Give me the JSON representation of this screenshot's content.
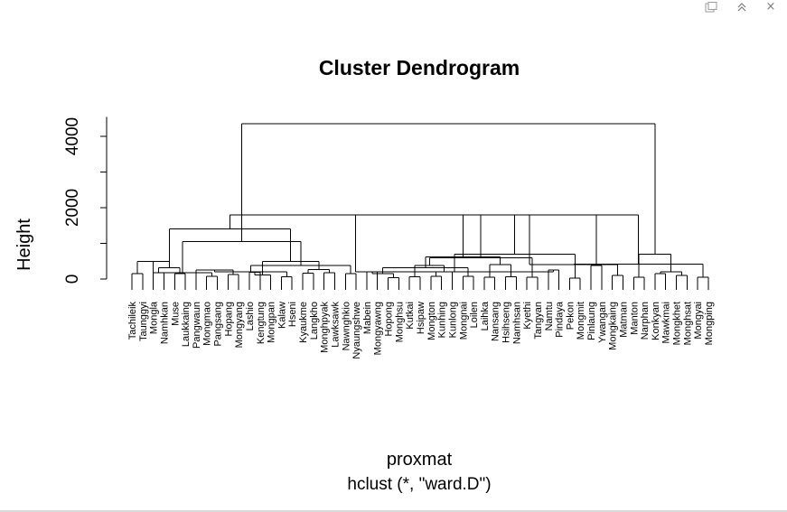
{
  "window": {
    "toolbar_icons": [
      "export-icon",
      "collapse-icon",
      "close-icon"
    ],
    "close_glyph": "×"
  },
  "chart_data": {
    "type": "dendrogram",
    "title": "Cluster Dendrogram",
    "ylabel": "Height",
    "xlabel": "proxmat",
    "subtitle": "hclust (*, \"ward.D\")",
    "ylim": [
      0,
      4500
    ],
    "yticks": [
      0,
      2000,
      4000
    ],
    "yticks_minor": [
      1000,
      3000
    ],
    "ytick_labels": [
      "0",
      "2000",
      "4000"
    ],
    "grid": false,
    "line_color": "#000000",
    "leaves": [
      "Tachileik",
      "Taunggyi",
      "Mongla",
      "Namhkan",
      "Muse",
      "Laukkaing",
      "Pangwaun",
      "Mongmao",
      "Pangsang",
      "Hopang",
      "Mongyang",
      "Lashio",
      "Kengtung",
      "Mongpan",
      "Kalaw",
      "Hseni",
      "Kyaukme",
      "Langkho",
      "Monghpyak",
      "Lawksawk",
      "Nawnghkio",
      "Nyaungshwe",
      "Mabein",
      "Mongyawng",
      "Hopong",
      "Monghsu",
      "Kutkai",
      "Hsipaw",
      "Mongton",
      "Kunhing",
      "Kunlong",
      "Mongnai",
      "Loilen",
      "Laihka",
      "Nansang",
      "Hsihseng",
      "Namhsan",
      "Kyethi",
      "Tangyan",
      "Namtu",
      "Pindaya",
      "Pekon",
      "Mongmit",
      "Pinlaung",
      "Ywangan",
      "Mongkaing",
      "Matman",
      "Manton",
      "Narphan",
      "Konkyan",
      "Mawkmai",
      "Mongkhet",
      "Monghsat",
      "Mongyai",
      "Mongping"
    ],
    "merges": [
      [
        -1,
        -2,
        150
      ],
      [
        -3,
        -4,
        180
      ],
      [
        -5,
        -6,
        150
      ],
      [
        2,
        3,
        320
      ],
      [
        1,
        4,
        500
      ],
      [
        -8,
        -9,
        80
      ],
      [
        -10,
        -11,
        130
      ],
      [
        5,
        6,
        180
      ],
      [
        -7,
        7,
        250
      ],
      [
        -12,
        -13,
        190
      ],
      [
        -15,
        -16,
        60
      ],
      [
        -14,
        10,
        120
      ],
      [
        9,
        11,
        200
      ],
      [
        -17,
        -18,
        170
      ],
      [
        -19,
        -20,
        180
      ],
      [
        -21,
        -22,
        150
      ],
      [
        14,
        15,
        260
      ],
      [
        13,
        16,
        380
      ],
      [
        12,
        17,
        500
      ],
      [
        8,
        18,
        1050
      ],
      [
        4,
        19,
        1400
      ],
      [
        -23,
        -24,
        200
      ],
      [
        -25,
        -26,
        40
      ],
      [
        -27,
        -28,
        60
      ],
      [
        22,
        23,
        150
      ],
      [
        -29,
        -30,
        80
      ],
      [
        -32,
        -33,
        70
      ],
      [
        -31,
        26,
        200
      ],
      [
        25,
        27,
        320
      ],
      [
        24,
        28,
        380
      ],
      [
        -34,
        -35,
        50
      ],
      [
        -36,
        -37,
        60
      ],
      [
        -38,
        -39,
        50
      ],
      [
        31,
        32,
        400
      ],
      [
        30,
        33,
        600
      ],
      [
        29,
        34,
        620
      ],
      [
        21,
        35,
        1800
      ],
      [
        -40,
        -41,
        250
      ],
      [
        -42,
        -43,
        20
      ],
      [
        37,
        38,
        200
      ],
      [
        -44,
        -45,
        380
      ],
      [
        39,
        40,
        700
      ],
      [
        36,
        41,
        1800
      ],
      [
        -46,
        -47,
        100
      ],
      [
        -48,
        -49,
        50
      ],
      [
        43,
        44,
        400
      ],
      [
        -50,
        -51,
        150
      ],
      [
        -52,
        -53,
        100
      ],
      [
        -54,
        -55,
        50
      ],
      [
        47,
        48,
        200
      ],
      [
        46,
        49,
        420
      ],
      [
        45,
        50,
        700
      ],
      [
        42,
        51,
        1800
      ],
      [
        20,
        52,
        4350
      ]
    ]
  }
}
